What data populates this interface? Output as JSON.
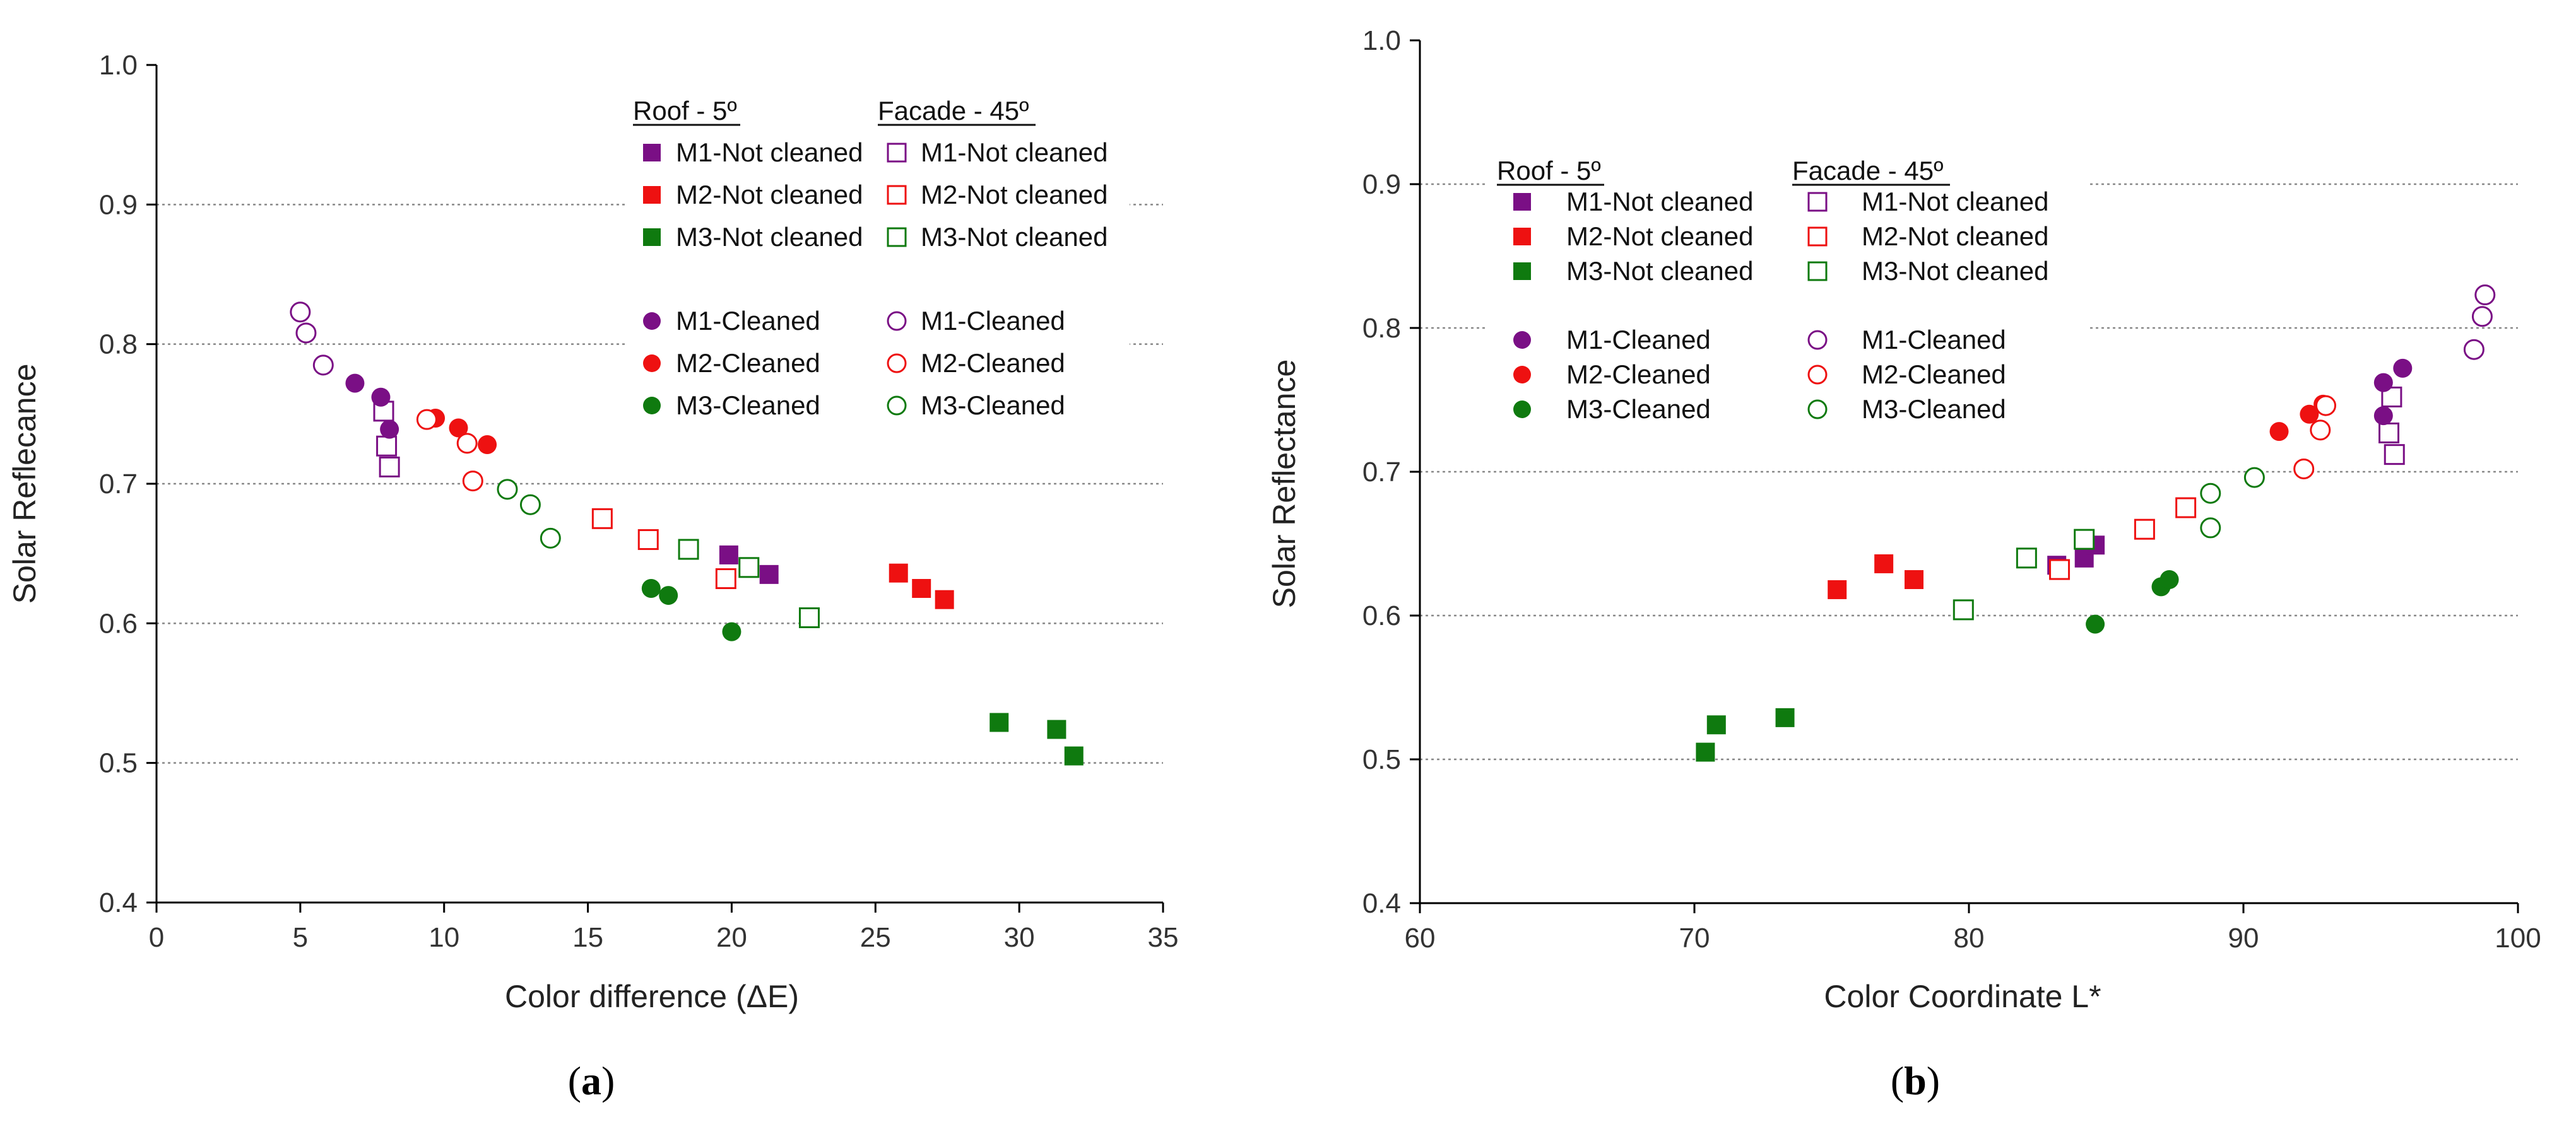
{
  "colors": {
    "M1": "#7a0f85",
    "M2": "#ee1111",
    "M3": "#0f7a0f"
  },
  "chart_data": [
    {
      "type": "scatter",
      "panel": "a",
      "caption_open": "(",
      "caption_letter": "a",
      "caption_close": ")",
      "xlabel": "Color difference (ΔE)",
      "ylabel": "Solar Reflecance",
      "xlim": [
        0,
        35
      ],
      "ylim": [
        0.4,
        1.0
      ],
      "xticks": [
        0,
        5,
        10,
        15,
        20,
        25,
        30,
        35
      ],
      "yticks": [
        0.4,
        0.5,
        0.6,
        0.7,
        0.8,
        0.9,
        1.0
      ],
      "ytick_labels": [
        "0.4",
        "0.5",
        "0.6",
        "0.7",
        "0.8",
        "0.9",
        "1.0"
      ],
      "gridlines_y": [
        0.5,
        0.6,
        0.7,
        0.8,
        0.9
      ],
      "legend": {
        "position": "top-right",
        "roof_header": "Roof - 5º",
        "facade_header": "Facade - 45º",
        "items": [
          {
            "label": "M1-Not cleaned",
            "material": "M1",
            "marker": "square"
          },
          {
            "label": "M2-Not cleaned",
            "material": "M2",
            "marker": "square"
          },
          {
            "label": "M3-Not cleaned",
            "material": "M3",
            "marker": "square"
          },
          {
            "label": "M1-Cleaned",
            "material": "M1",
            "marker": "circle"
          },
          {
            "label": "M2-Cleaned",
            "material": "M2",
            "marker": "circle"
          },
          {
            "label": "M3-Cleaned",
            "material": "M3",
            "marker": "circle"
          }
        ]
      },
      "series": [
        {
          "name": "Roof M1-Not cleaned",
          "material": "M1",
          "marker": "square",
          "filled": true,
          "points": [
            [
              19.9,
              0.649
            ],
            [
              21.3,
              0.635
            ]
          ]
        },
        {
          "name": "Roof M2-Not cleaned",
          "material": "M2",
          "marker": "square",
          "filled": true,
          "points": [
            [
              25.8,
              0.636
            ],
            [
              26.6,
              0.625
            ],
            [
              27.4,
              0.617
            ]
          ]
        },
        {
          "name": "Roof M3-Not cleaned",
          "material": "M3",
          "marker": "square",
          "filled": true,
          "points": [
            [
              29.3,
              0.529
            ],
            [
              31.3,
              0.524
            ],
            [
              31.9,
              0.505
            ]
          ]
        },
        {
          "name": "Facade M1-Not cleaned",
          "material": "M1",
          "marker": "square",
          "filled": false,
          "points": [
            [
              7.9,
              0.752
            ],
            [
              8.0,
              0.727
            ],
            [
              8.1,
              0.712
            ]
          ]
        },
        {
          "name": "Facade M2-Not cleaned",
          "material": "M2",
          "marker": "square",
          "filled": false,
          "points": [
            [
              15.5,
              0.675
            ],
            [
              17.1,
              0.66
            ],
            [
              19.8,
              0.632
            ]
          ]
        },
        {
          "name": "Facade M3-Not cleaned",
          "material": "M3",
          "marker": "square",
          "filled": false,
          "points": [
            [
              18.5,
              0.653
            ],
            [
              20.6,
              0.64
            ],
            [
              22.7,
              0.604
            ]
          ]
        },
        {
          "name": "Roof M1-Cleaned",
          "material": "M1",
          "marker": "circle",
          "filled": true,
          "points": [
            [
              6.9,
              0.772
            ],
            [
              7.8,
              0.762
            ],
            [
              8.1,
              0.739
            ]
          ]
        },
        {
          "name": "Roof M2-Cleaned",
          "material": "M2",
          "marker": "circle",
          "filled": true,
          "points": [
            [
              9.7,
              0.747
            ],
            [
              10.5,
              0.74
            ],
            [
              11.5,
              0.728
            ]
          ]
        },
        {
          "name": "Roof M3-Cleaned",
          "material": "M3",
          "marker": "circle",
          "filled": true,
          "points": [
            [
              17.2,
              0.625
            ],
            [
              17.8,
              0.62
            ],
            [
              20.0,
              0.594
            ]
          ]
        },
        {
          "name": "Facade M1-Cleaned",
          "material": "M1",
          "marker": "circle",
          "filled": false,
          "points": [
            [
              5.0,
              0.823
            ],
            [
              5.2,
              0.808
            ],
            [
              5.8,
              0.785
            ]
          ]
        },
        {
          "name": "Facade M2-Cleaned",
          "material": "M2",
          "marker": "circle",
          "filled": false,
          "points": [
            [
              9.4,
              0.746
            ],
            [
              10.8,
              0.729
            ],
            [
              11.0,
              0.702
            ]
          ]
        },
        {
          "name": "Facade M3-Cleaned",
          "material": "M3",
          "marker": "circle",
          "filled": false,
          "points": [
            [
              12.2,
              0.696
            ],
            [
              13.0,
              0.685
            ],
            [
              13.7,
              0.661
            ]
          ]
        }
      ]
    },
    {
      "type": "scatter",
      "panel": "b",
      "caption_open": "(",
      "caption_letter": "b",
      "caption_close": ")",
      "xlabel": "Color Coordinate L*",
      "ylabel": "Solar Reflectance",
      "xlim": [
        60,
        100
      ],
      "ylim": [
        0.4,
        1.0
      ],
      "xticks": [
        60,
        70,
        80,
        90,
        100
      ],
      "yticks": [
        0.4,
        0.5,
        0.6,
        0.7,
        0.8,
        0.9,
        1.0
      ],
      "ytick_labels": [
        "0.4",
        "0.5",
        "0.6",
        "0.7",
        "0.8",
        "0.9",
        "1.0"
      ],
      "gridlines_y": [
        0.5,
        0.6,
        0.7,
        0.8,
        0.9
      ],
      "legend": {
        "position": "top-left",
        "roof_header": "Roof - 5º",
        "facade_header": "Facade - 45º",
        "items": [
          {
            "label": "M1-Not cleaned",
            "material": "M1",
            "marker": "square"
          },
          {
            "label": "M2-Not cleaned",
            "material": "M2",
            "marker": "square"
          },
          {
            "label": "M3-Not cleaned",
            "material": "M3",
            "marker": "square"
          },
          {
            "label": "M1-Cleaned",
            "material": "M1",
            "marker": "circle"
          },
          {
            "label": "M2-Cleaned",
            "material": "M2",
            "marker": "circle"
          },
          {
            "label": "M3-Cleaned",
            "material": "M3",
            "marker": "circle"
          }
        ]
      },
      "series": [
        {
          "name": "Roof M1-Not cleaned",
          "material": "M1",
          "marker": "square",
          "filled": true,
          "points": [
            [
              84.2,
              0.64
            ],
            [
              84.6,
              0.649
            ],
            [
              83.2,
              0.635
            ]
          ]
        },
        {
          "name": "Roof M2-Not cleaned",
          "material": "M2",
          "marker": "square",
          "filled": true,
          "points": [
            [
              75.2,
              0.618
            ],
            [
              76.9,
              0.636
            ],
            [
              78.0,
              0.625
            ]
          ]
        },
        {
          "name": "Roof M3-Not cleaned",
          "material": "M3",
          "marker": "square",
          "filled": true,
          "points": [
            [
              70.4,
              0.505
            ],
            [
              70.8,
              0.524
            ],
            [
              73.3,
              0.529
            ]
          ]
        },
        {
          "name": "Facade M1-Not cleaned",
          "material": "M1",
          "marker": "square",
          "filled": false,
          "points": [
            [
              95.4,
              0.752
            ],
            [
              95.3,
              0.727
            ],
            [
              95.5,
              0.712
            ]
          ]
        },
        {
          "name": "Facade M2-Not cleaned",
          "material": "M2",
          "marker": "square",
          "filled": false,
          "points": [
            [
              83.3,
              0.632
            ],
            [
              86.4,
              0.66
            ],
            [
              87.9,
              0.675
            ]
          ]
        },
        {
          "name": "Facade M3-Not cleaned",
          "material": "M3",
          "marker": "square",
          "filled": false,
          "points": [
            [
              79.8,
              0.604
            ],
            [
              82.1,
              0.64
            ],
            [
              84.2,
              0.653
            ]
          ]
        },
        {
          "name": "Roof M1-Cleaned",
          "material": "M1",
          "marker": "circle",
          "filled": true,
          "points": [
            [
              95.1,
              0.762
            ],
            [
              95.8,
              0.772
            ],
            [
              95.1,
              0.739
            ]
          ]
        },
        {
          "name": "Roof M2-Cleaned",
          "material": "M2",
          "marker": "circle",
          "filled": true,
          "points": [
            [
              91.3,
              0.728
            ],
            [
              92.4,
              0.74
            ],
            [
              92.9,
              0.747
            ]
          ]
        },
        {
          "name": "Roof M3-Cleaned",
          "material": "M3",
          "marker": "circle",
          "filled": true,
          "points": [
            [
              84.6,
              0.594
            ],
            [
              87.0,
              0.62
            ],
            [
              87.3,
              0.625
            ]
          ]
        },
        {
          "name": "Facade M1-Cleaned",
          "material": "M1",
          "marker": "circle",
          "filled": false,
          "points": [
            [
              98.4,
              0.785
            ],
            [
              98.7,
              0.808
            ],
            [
              98.8,
              0.823
            ]
          ]
        },
        {
          "name": "Facade M2-Cleaned",
          "material": "M2",
          "marker": "circle",
          "filled": false,
          "points": [
            [
              92.2,
              0.702
            ],
            [
              92.8,
              0.729
            ],
            [
              93.0,
              0.746
            ]
          ]
        },
        {
          "name": "Facade M3-Cleaned",
          "material": "M3",
          "marker": "circle",
          "filled": false,
          "points": [
            [
              88.8,
              0.661
            ],
            [
              88.8,
              0.685
            ],
            [
              90.4,
              0.696
            ]
          ]
        }
      ]
    }
  ]
}
